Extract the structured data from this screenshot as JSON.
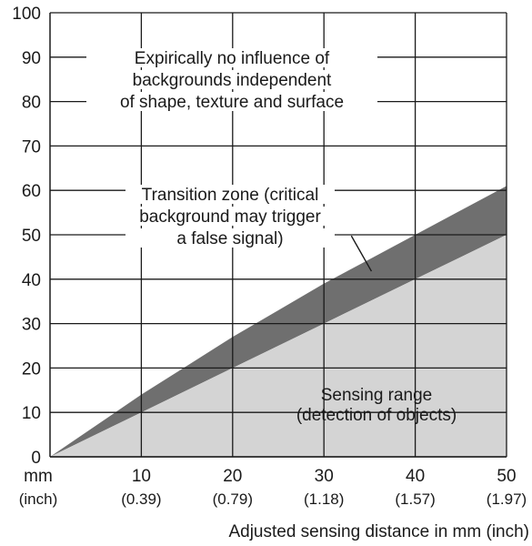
{
  "chart_data": {
    "type": "area",
    "xlabel": "Adjusted sensing distance in mm (inch)",
    "x_unit_label": "mm",
    "x_unit_sub": "(inch)",
    "xlim": [
      0,
      50
    ],
    "ylim": [
      0,
      100
    ],
    "grid": true,
    "x_ticks": [
      {
        "value": 10,
        "label": "10",
        "sub": "(0.39)"
      },
      {
        "value": 20,
        "label": "20",
        "sub": "(0.79)"
      },
      {
        "value": 30,
        "label": "30",
        "sub": "(1.18)"
      },
      {
        "value": 40,
        "label": "40",
        "sub": "(1.57)"
      },
      {
        "value": 50,
        "label": "50",
        "sub": "(1.97)"
      }
    ],
    "y_ticks": [
      {
        "value": 0,
        "label": "0"
      },
      {
        "value": 10,
        "label": "10"
      },
      {
        "value": 20,
        "label": "20"
      },
      {
        "value": 30,
        "label": "30"
      },
      {
        "value": 40,
        "label": "40"
      },
      {
        "value": 50,
        "label": "50"
      },
      {
        "value": 60,
        "label": "60"
      },
      {
        "value": 70,
        "label": "70"
      },
      {
        "value": 80,
        "label": "80"
      },
      {
        "value": 90,
        "label": "90"
      },
      {
        "value": 100,
        "label": "100"
      }
    ],
    "series": [
      {
        "role": "sensing-range",
        "color": "#d4d4d4",
        "x": [
          0,
          10,
          20,
          30,
          40,
          50
        ],
        "y": [
          0,
          10,
          20,
          30,
          40,
          50
        ]
      },
      {
        "role": "transition-zone",
        "color": "#6f6f6f",
        "x": [
          0,
          5,
          10,
          15,
          20,
          25,
          30,
          35,
          40,
          45,
          50
        ],
        "y": [
          0,
          7,
          14,
          20.5,
          27,
          33,
          39,
          44.5,
          50,
          55.5,
          61
        ]
      }
    ],
    "annotations": [
      {
        "role": "no-influence",
        "lines": [
          "Expirically no influence of",
          "backgrounds independent",
          "of shape, texture and surface"
        ]
      },
      {
        "role": "transition-zone",
        "lines": [
          "Transition zone (critical",
          "background may trigger",
          "a false signal)"
        ],
        "pointer": {
          "from": [
            33,
            51
          ],
          "to": [
            36,
            42
          ]
        }
      },
      {
        "role": "sensing-range",
        "lines": [
          "Sensing range",
          "(detection of objects)"
        ]
      }
    ]
  }
}
